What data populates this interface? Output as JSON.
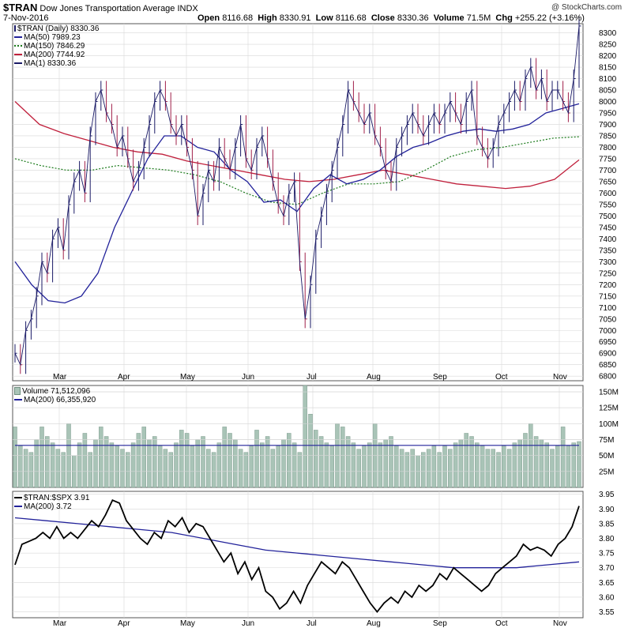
{
  "header": {
    "symbol": "$TRAN",
    "name": "Dow Jones Transportation Average",
    "exchange": "INDX",
    "date": "7-Nov-2016",
    "open_label": "Open",
    "open": "8116.68",
    "high_label": "High",
    "high": "8330.91",
    "low_label": "Low",
    "low": "8116.68",
    "close_label": "Close",
    "close": "8330.36",
    "volume_label": "Volume",
    "volume": "71.5M",
    "chg_label": "Chg",
    "chg": "+255.22 (+3.16%)",
    "watermark": "@ StockCharts.com"
  },
  "colors": {
    "price": "#1a1a66",
    "ma50": "#22229a",
    "ma150": "#1a7a1a",
    "ma200": "#c0203c",
    "ma1": "#1a1a66",
    "volume_bar": "#a9c4b7",
    "volume_edge": "#6f8f80",
    "ratio": "#000000",
    "ratio_ma": "#22229a",
    "grid": "#d8d8d8"
  },
  "legend_price": [
    {
      "label": "$TRAN (Daily) 8330.36",
      "color": "#1a1a66",
      "style": "bar"
    },
    {
      "label": "MA(50) 7989.23",
      "color": "#22229a",
      "style": "solid"
    },
    {
      "label": "MA(150) 7846.29",
      "color": "#1a7a1a",
      "style": "dotted"
    },
    {
      "label": "MA(200) 7744.92",
      "color": "#c0203c",
      "style": "solid"
    },
    {
      "label": "MA(1) 8330.36",
      "color": "#1a1a66",
      "style": "solid"
    }
  ],
  "legend_volume": [
    {
      "label": "Volume 71,512,096",
      "color": "#a9c4b7",
      "style": "box"
    },
    {
      "label": "MA(200) 66,355,920",
      "color": "#22229a",
      "style": "solid"
    }
  ],
  "legend_ratio": [
    {
      "label": "$TRAN:$SPX 3.91",
      "color": "#000000",
      "style": "solid"
    },
    {
      "label": "MA(200) 3.72",
      "color": "#22229a",
      "style": "solid"
    }
  ],
  "chart_data": [
    {
      "type": "line",
      "panel": "price",
      "series": [
        {
          "name": "$TRAN (Daily) 8330.36",
          "kind": "ohlc",
          "values": [
            6900,
            6850,
            7000,
            7050,
            7150,
            7300,
            7250,
            7400,
            7450,
            7350,
            7550,
            7650,
            7700,
            7600,
            7850,
            8000,
            8050,
            7950,
            7900,
            7800,
            7850,
            7750,
            7650,
            7700,
            7800,
            7900,
            8000,
            8050,
            8000,
            7900,
            7850,
            7900,
            7800,
            7700,
            7500,
            7600,
            7700,
            7650,
            7800,
            7750,
            7700,
            7800,
            7900,
            7750,
            7700,
            7800,
            7850,
            7750,
            7650,
            7550,
            7500,
            7600,
            7650,
            7300,
            7050,
            7200,
            7400,
            7500,
            7600,
            7700,
            7800,
            7900,
            8050,
            8000,
            7950,
            7900,
            7950,
            7850,
            7800,
            7700,
            7650,
            7800,
            7850,
            7900,
            7950,
            7900,
            7850,
            7900,
            7950,
            7900,
            7950,
            8000,
            7950,
            7900,
            8000,
            8050,
            7850,
            7800,
            7750,
            7800,
            7900,
            7950,
            8000,
            8050,
            8000,
            8100,
            8150,
            8050,
            8100,
            8000,
            8050,
            8050,
            8000,
            7950,
            8100,
            8330
          ]
        },
        {
          "name": "MA(50) 7989.23",
          "values": [
            7300,
            7200,
            7130,
            7120,
            7150,
            7250,
            7450,
            7600,
            7750,
            7850,
            7850,
            7800,
            7780,
            7700,
            7650,
            7560,
            7570,
            7520,
            7620,
            7680,
            7640,
            7660,
            7700,
            7760,
            7800,
            7820,
            7850,
            7870,
            7880,
            7870,
            7880,
            7900,
            7950,
            7970,
            7990
          ]
        },
        {
          "name": "MA(150) 7846.29",
          "values": [
            7750,
            7720,
            7700,
            7700,
            7720,
            7710,
            7700,
            7680,
            7650,
            7600,
            7560,
            7550,
            7600,
            7640,
            7640,
            7650,
            7700,
            7760,
            7790,
            7800,
            7820,
            7840,
            7846
          ]
        },
        {
          "name": "MA(200) 7744.92",
          "values": [
            8000,
            7900,
            7860,
            7830,
            7800,
            7780,
            7770,
            7740,
            7720,
            7700,
            7680,
            7660,
            7650,
            7660,
            7680,
            7700,
            7680,
            7660,
            7640,
            7630,
            7620,
            7630,
            7660,
            7745
          ]
        }
      ],
      "x_ticks": [
        "Mar",
        "Apr",
        "May",
        "Jun",
        "Jul",
        "Aug",
        "Sep",
        "Oct",
        "Nov"
      ],
      "y_ticks": [
        6800,
        6850,
        6900,
        6950,
        7000,
        7050,
        7100,
        7150,
        7200,
        7250,
        7300,
        7350,
        7400,
        7450,
        7500,
        7550,
        7600,
        7650,
        7700,
        7750,
        7800,
        7850,
        7900,
        7950,
        8000,
        8050,
        8100,
        8150,
        8200,
        8250,
        8300
      ],
      "ylim": [
        6780,
        8340
      ],
      "grid": true
    },
    {
      "type": "bar",
      "panel": "volume",
      "series": [
        {
          "name": "Volume 71,512,096",
          "values": [
            95,
            65,
            60,
            55,
            75,
            95,
            80,
            70,
            60,
            55,
            100,
            50,
            70,
            85,
            55,
            75,
            95,
            80,
            70,
            65,
            60,
            55,
            70,
            85,
            95,
            75,
            80,
            65,
            60,
            55,
            70,
            90,
            85,
            65,
            75,
            80,
            60,
            55,
            70,
            95,
            85,
            75,
            60,
            55,
            65,
            90,
            70,
            80,
            60,
            65,
            75,
            85,
            70,
            55,
            160,
            115,
            90,
            80,
            70,
            65,
            100,
            95,
            80,
            70,
            60,
            65,
            70,
            100,
            70,
            75,
            80,
            65,
            60,
            55,
            60,
            50,
            55,
            60,
            65,
            55,
            65,
            60,
            70,
            75,
            85,
            80,
            70,
            65,
            60,
            60,
            55,
            65,
            60,
            70,
            75,
            85,
            100,
            80,
            75,
            70,
            60,
            65,
            95,
            65,
            70,
            72
          ]
        },
        {
          "name": "MA(200) 66,355,920",
          "values": [
            66,
            66,
            66,
            66,
            66,
            66,
            66,
            66,
            66,
            66,
            66
          ]
        }
      ],
      "y_ticks": [
        "25M",
        "50M",
        "75M",
        "100M",
        "125M",
        "150M"
      ],
      "ylim": [
        0,
        160
      ]
    },
    {
      "type": "line",
      "panel": "ratio",
      "series": [
        {
          "name": "$TRAN:$SPX 3.91",
          "values": [
            3.71,
            3.78,
            3.79,
            3.8,
            3.82,
            3.8,
            3.84,
            3.8,
            3.82,
            3.8,
            3.83,
            3.86,
            3.84,
            3.88,
            3.93,
            3.92,
            3.86,
            3.83,
            3.8,
            3.78,
            3.82,
            3.8,
            3.86,
            3.84,
            3.87,
            3.82,
            3.85,
            3.84,
            3.8,
            3.76,
            3.72,
            3.75,
            3.68,
            3.72,
            3.66,
            3.7,
            3.62,
            3.6,
            3.56,
            3.58,
            3.62,
            3.58,
            3.64,
            3.68,
            3.72,
            3.7,
            3.68,
            3.72,
            3.7,
            3.66,
            3.62,
            3.58,
            3.55,
            3.58,
            3.6,
            3.58,
            3.62,
            3.6,
            3.64,
            3.62,
            3.64,
            3.68,
            3.66,
            3.7,
            3.68,
            3.66,
            3.64,
            3.62,
            3.64,
            3.68,
            3.7,
            3.72,
            3.74,
            3.78,
            3.76,
            3.77,
            3.76,
            3.74,
            3.78,
            3.8,
            3.84,
            3.91
          ]
        },
        {
          "name": "MA(200) 3.72",
          "values": [
            3.87,
            3.86,
            3.85,
            3.84,
            3.83,
            3.82,
            3.8,
            3.78,
            3.76,
            3.75,
            3.74,
            3.73,
            3.72,
            3.71,
            3.7,
            3.7,
            3.7,
            3.71,
            3.72
          ]
        }
      ],
      "y_ticks": [
        3.55,
        3.6,
        3.65,
        3.7,
        3.75,
        3.8,
        3.85,
        3.9,
        3.95
      ],
      "ylim": [
        3.53,
        3.96
      ]
    }
  ]
}
